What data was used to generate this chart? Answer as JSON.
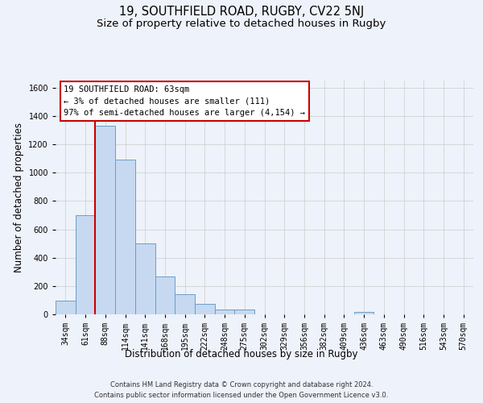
{
  "title_line1": "19, SOUTHFIELD ROAD, RUGBY, CV22 5NJ",
  "title_line2": "Size of property relative to detached houses in Rugby",
  "xlabel": "Distribution of detached houses by size in Rugby",
  "ylabel": "Number of detached properties",
  "categories": [
    "34sqm",
    "61sqm",
    "88sqm",
    "114sqm",
    "141sqm",
    "168sqm",
    "195sqm",
    "222sqm",
    "248sqm",
    "275sqm",
    "302sqm",
    "329sqm",
    "356sqm",
    "382sqm",
    "409sqm",
    "436sqm",
    "463sqm",
    "490sqm",
    "516sqm",
    "543sqm",
    "570sqm"
  ],
  "values": [
    95,
    700,
    1330,
    1090,
    500,
    270,
    140,
    75,
    35,
    35,
    0,
    0,
    0,
    0,
    0,
    15,
    0,
    0,
    0,
    0,
    0
  ],
  "bar_color": "#c6d9f0",
  "bar_edge_color": "#6b9ec8",
  "vline_x": 1.5,
  "vline_color": "#cc0000",
  "annotation_line1": "19 SOUTHFIELD ROAD: 63sqm",
  "annotation_line2": "← 3% of detached houses are smaller (111)",
  "annotation_line3": "97% of semi-detached houses are larger (4,154) →",
  "annotation_box_facecolor": "#ffffff",
  "annotation_box_edgecolor": "#cc0000",
  "ylim_max": 1650,
  "yticks": [
    0,
    200,
    400,
    600,
    800,
    1000,
    1200,
    1400,
    1600
  ],
  "grid_color": "#cccccc",
  "bg_color": "#eef2fa",
  "footer_line1": "Contains HM Land Registry data © Crown copyright and database right 2024.",
  "footer_line2": "Contains public sector information licensed under the Open Government Licence v3.0.",
  "title_fontsize": 10.5,
  "subtitle_fontsize": 9.5,
  "ylabel_fontsize": 8.5,
  "xlabel_fontsize": 8.5,
  "tick_fontsize": 7,
  "annot_fontsize": 7.5,
  "footer_fontsize": 6
}
